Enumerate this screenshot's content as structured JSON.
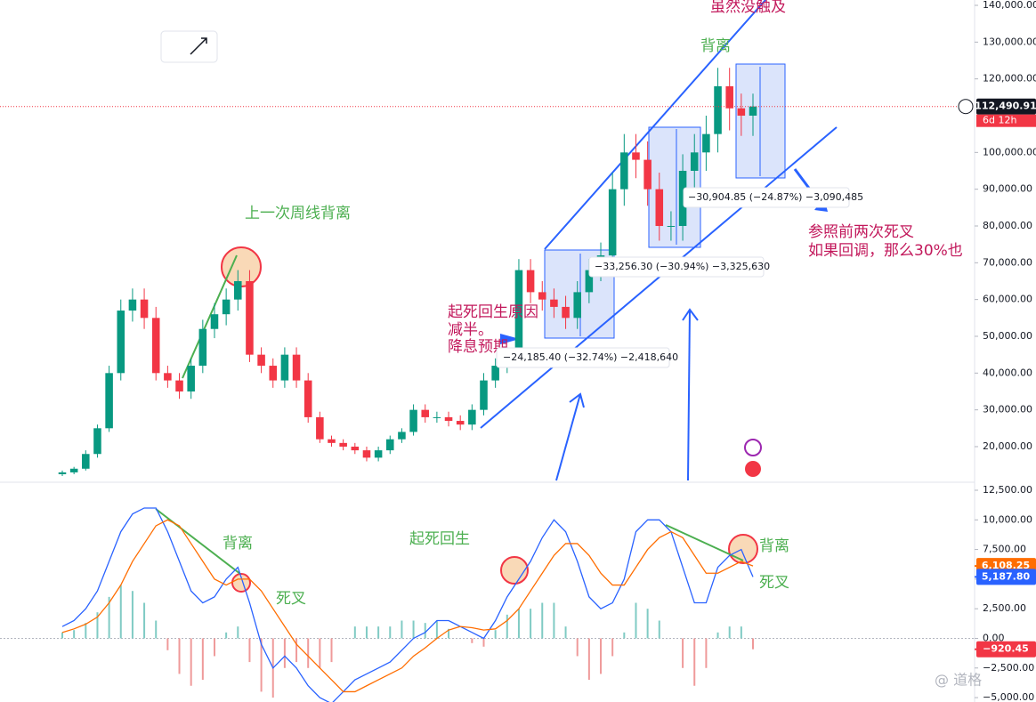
{
  "chart_data": [
    {
      "type": "candlestick",
      "open": [
        12500,
        13000,
        14000,
        18000,
        25000,
        40000,
        57000,
        60000,
        55000,
        40000,
        38000,
        35000,
        42000,
        52000,
        56000,
        60000,
        65000,
        45000,
        42000,
        38000,
        45000,
        38000,
        28000,
        22000,
        21000,
        20000,
        19000,
        17000,
        19000,
        22000,
        24000,
        30000,
        28000,
        28000,
        27000,
        26000,
        30000,
        38000,
        42000,
        45000,
        68000,
        62000,
        60000,
        58000,
        55000,
        62000,
        68000,
        72000,
        90000,
        100000,
        98000,
        90000,
        80000,
        80000,
        95000,
        100000,
        105000,
        118000,
        112000,
        110000
      ],
      "high": [
        13500,
        14500,
        19000,
        26000,
        42000,
        60000,
        63000,
        63000,
        58000,
        42000,
        40000,
        44000,
        54500,
        59000,
        63000,
        68000,
        68000,
        47000,
        44000,
        47000,
        47000,
        40000,
        29500,
        23000,
        22000,
        21000,
        20000,
        20000,
        23000,
        25000,
        31500,
        31500,
        29500,
        29500,
        28500,
        31500,
        40000,
        44000,
        47000,
        71000,
        71000,
        65000,
        63000,
        61000,
        65000,
        71000,
        75500,
        94500,
        105000,
        105000,
        103000,
        94500,
        84000,
        99500,
        105000,
        110000,
        123000,
        123000,
        116000,
        116000
      ],
      "low": [
        12000,
        12500,
        13500,
        17000,
        24000,
        38000,
        54000,
        52000,
        38000,
        36000,
        33000,
        33000,
        40000,
        49500,
        53000,
        57000,
        43000,
        40000,
        36000,
        36000,
        36000,
        26500,
        21000,
        20000,
        19000,
        18000,
        16000,
        16000,
        18000,
        21000,
        23000,
        26500,
        26500,
        25500,
        24500,
        24500,
        28500,
        36000,
        40000,
        43000,
        59000,
        57000,
        55000,
        52000,
        52000,
        59000,
        65000,
        68500,
        85500,
        93000,
        85500,
        76000,
        76000,
        76000,
        90000,
        95000,
        100000,
        106000,
        104500,
        104500
      ],
      "close": [
        13000,
        14000,
        18000,
        25000,
        40000,
        57000,
        60000,
        55000,
        40000,
        38000,
        35000,
        42000,
        52000,
        56000,
        60000,
        65000,
        45000,
        42000,
        38000,
        45000,
        38000,
        28000,
        22000,
        21000,
        20000,
        19000,
        17000,
        19000,
        22000,
        24000,
        30000,
        28000,
        28000,
        27000,
        26000,
        30000,
        38000,
        42000,
        45000,
        68000,
        62000,
        60000,
        58000,
        55000,
        62000,
        68000,
        72000,
        90000,
        100000,
        98000,
        90000,
        80000,
        80000,
        95000,
        100000,
        105000,
        118000,
        112000,
        110000,
        112490.91
      ],
      "up_color": "#089981",
      "down_color": "#f23645",
      "ylim": [
        10560,
        141450
      ],
      "yticks": [
        {
          "value": 20000,
          "label": "20,000.00"
        },
        {
          "value": 30000,
          "label": "30,000.00"
        },
        {
          "value": 40000,
          "label": "40,000.00"
        },
        {
          "value": 50000,
          "label": "50,000.00"
        },
        {
          "value": 60000,
          "label": "60,000.00"
        },
        {
          "value": 70000,
          "label": "70,000.00"
        },
        {
          "value": 80000,
          "label": "80,000.00"
        },
        {
          "value": 90000,
          "label": "90,000.00"
        },
        {
          "value": 100000,
          "label": "100,000.00"
        },
        {
          "value": 120000,
          "label": "120,000.00"
        },
        {
          "value": 130000,
          "label": "130,000.00"
        },
        {
          "value": 140000,
          "label": "140,000.00"
        }
      ],
      "last_price": {
        "value": 112490.91,
        "label": "112,490.91"
      },
      "countdown": "6d 12h",
      "annotations": [
        "虽然没触及",
        "背离",
        "上一次周线背离",
        "起死回生原因",
        "减半。",
        "降息预期",
        "参照前两次死叉",
        "如果回调，那么30%也"
      ],
      "measurements": [
        "−24,185.40 (−32.74%) −2,418,640",
        "−33,256.30 (−30.94%) −3,325,630",
        "−30,904.85 (−24.87%) −3,090,485"
      ]
    },
    {
      "type": "macd",
      "series": [
        {
          "name": "MACD",
          "color": "#2962ff",
          "values": [
            1000,
            1500,
            2500,
            4000,
            6500,
            9000,
            10500,
            11000,
            11000,
            9000,
            6500,
            4000,
            3000,
            3500,
            5000,
            6000,
            3000,
            -500,
            -2500,
            -1500,
            -2500,
            -4000,
            -5000,
            -5500,
            -4500,
            -3500,
            -3000,
            -2500,
            -2000,
            -1000,
            0,
            500,
            1500,
            1500,
            1000,
            500,
            0,
            1500,
            3500,
            5000,
            6500,
            8500,
            10000,
            9000,
            6500,
            3500,
            2500,
            3000,
            5000,
            9000,
            10000,
            10000,
            9000,
            6000,
            3000,
            3000,
            6000,
            7000,
            7500,
            5187.8
          ]
        },
        {
          "name": "Signal",
          "color": "#ff6d00",
          "values": [
            500,
            800,
            1200,
            1800,
            3000,
            4500,
            6500,
            8000,
            9500,
            10000,
            9500,
            8000,
            6500,
            5000,
            4500,
            5000,
            5000,
            4000,
            2500,
            1000,
            -500,
            -1500,
            -2500,
            -3500,
            -4500,
            -4500,
            -4000,
            -3500,
            -3000,
            -2500,
            -1500,
            -800,
            0,
            700,
            1000,
            900,
            700,
            800,
            1500,
            2500,
            4000,
            5500,
            7000,
            8000,
            8000,
            7000,
            5500,
            4500,
            4500,
            6000,
            7500,
            8500,
            9000,
            8500,
            7000,
            5500,
            5500,
            6000,
            6500,
            6108.25
          ]
        }
      ],
      "histogram": [
        500,
        700,
        1300,
        2200,
        3500,
        4500,
        4000,
        3000,
        1500,
        -1000,
        -3000,
        -4000,
        -3500,
        -1500,
        500,
        1000,
        -2000,
        -4500,
        -5000,
        -2500,
        -2000,
        -2500,
        -2500,
        -2000,
        0,
        1000,
        1000,
        1000,
        1000,
        1500,
        1500,
        1300,
        1500,
        800,
        0,
        -400,
        -700,
        700,
        2000,
        2500,
        2500,
        3000,
        3000,
        1000,
        -1500,
        -3500,
        -3000,
        -1500,
        500,
        3000,
        2500,
        1500,
        0,
        -2500,
        -4000,
        -2500,
        500,
        1000,
        1000,
        -920.45
      ],
      "histogram_up_color": "#80cbc4",
      "histogram_down_color": "#ef9a9a",
      "ylim": [
        -5370,
        13100
      ],
      "yticks": [
        {
          "value": 12500,
          "label": "12,500.00"
        },
        {
          "value": 10000,
          "label": "10,000.00"
        },
        {
          "value": 7500,
          "label": "7,500.00"
        },
        {
          "value": 5000,
          "label": "5,000.00"
        },
        {
          "value": 2500,
          "label": "2,500.00"
        },
        {
          "value": 0,
          "label": "0.00"
        },
        {
          "value": -2500,
          "label": "−2,500.00"
        },
        {
          "value": -5000,
          "label": "−5,000.00"
        }
      ],
      "last_labels": [
        {
          "value": 6108.25,
          "label": "6,108.25",
          "color": "#ff6d00"
        },
        {
          "value": 5187.8,
          "label": "5,187.80",
          "color": "#2962ff"
        },
        {
          "value": -920.45,
          "label": "−920.45",
          "color": "#f23645"
        }
      ],
      "annotations": [
        "背离",
        "死叉",
        "起死回生",
        "背离",
        "死叉"
      ]
    }
  ],
  "watermark": "@ 道格"
}
